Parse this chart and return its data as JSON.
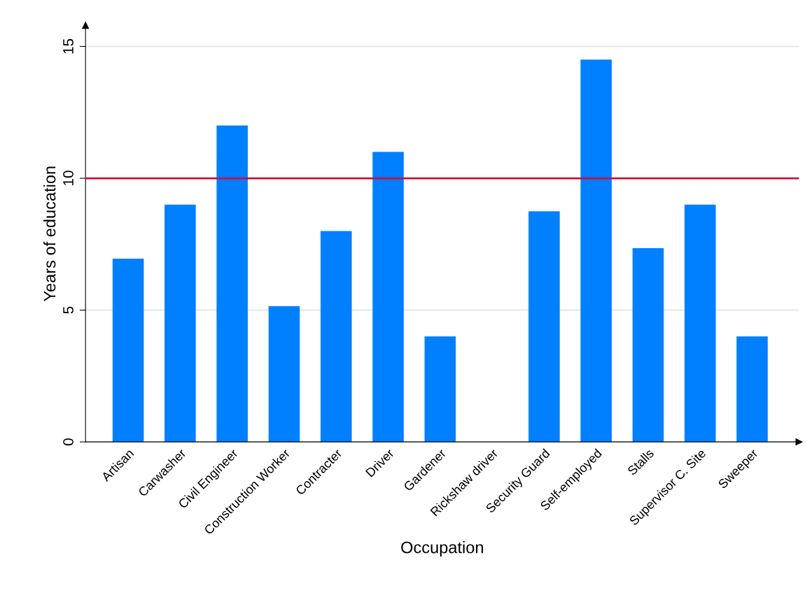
{
  "chart_data": {
    "type": "bar",
    "xlabel": "Occupation",
    "ylabel": "Years of education",
    "categories": [
      "Artisan",
      "Carwasher",
      "Civil Engineer",
      "Construction Worker",
      "Contracter",
      "Driver",
      "Gardener",
      "Rickshaw driver",
      "Security Guard",
      "Self-employed",
      "Stalls",
      "Supervisor C. Site",
      "Sweeper"
    ],
    "values": [
      6.95,
      9,
      12,
      5.15,
      8,
      11,
      4,
      0,
      8.75,
      14.5,
      7.35,
      9,
      4
    ],
    "color": "#0080ff",
    "ylim": [
      0,
      15.8
    ],
    "yticks": [
      0,
      5,
      10,
      15
    ],
    "grid": "y",
    "legend": false,
    "ref_lines": [
      {
        "axis": "y",
        "value": 10,
        "color": "#c8103c",
        "line_style": "solid"
      }
    ]
  }
}
